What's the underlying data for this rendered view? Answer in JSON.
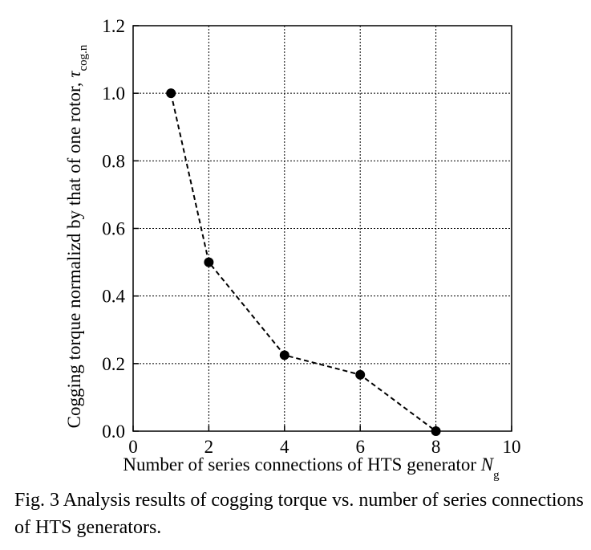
{
  "chart_data": {
    "type": "line",
    "x": [
      1,
      2,
      4,
      6,
      8
    ],
    "series": [
      {
        "values": [
          1.0,
          0.5,
          0.225,
          0.167,
          0.0
        ]
      }
    ],
    "xlim": [
      0,
      10
    ],
    "ylim": [
      0,
      1.2
    ],
    "xticks": [
      "0",
      "2",
      "4",
      "6",
      "8",
      "10"
    ],
    "yticks": [
      "0.0",
      "0.2",
      "0.4",
      "0.6",
      "0.8",
      "1.0",
      "1.2"
    ],
    "xlabel": "Number of series connections of HTS generator ",
    "xlabel_symbol": "N",
    "xlabel_subscript": "g",
    "ylabel": "Cogging torque normalizd by that of one rotor, ",
    "ylabel_symbol": "τ",
    "ylabel_subscript": "cog.n",
    "grid": true,
    "line_style": "dashed",
    "marker": "filled-circle",
    "colors": {
      "series": "#000000",
      "grid": "#000000"
    }
  },
  "caption": "Fig. 3 Analysis results of cogging torque vs. number of series connections of HTS generators."
}
